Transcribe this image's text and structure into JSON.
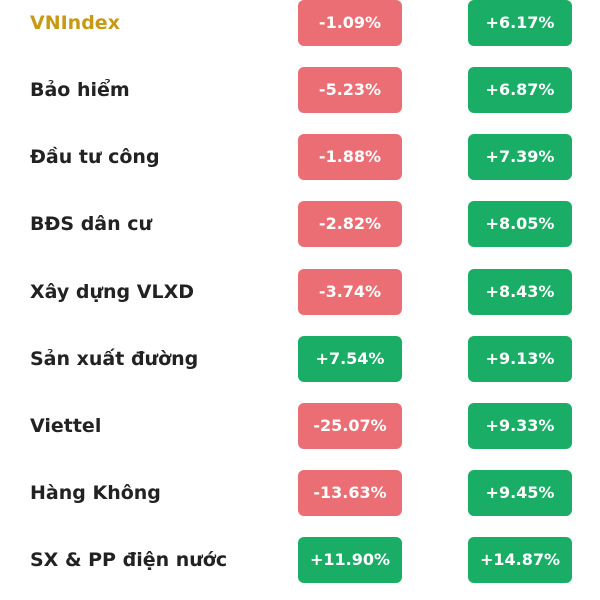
{
  "colors": {
    "positive": "#19ad66",
    "negative": "#ea6e74",
    "highlight_text": "#c79a16",
    "text": "#222222"
  },
  "rows": [
    {
      "name": "VNIndex",
      "highlight": true,
      "col1": "-1.09%",
      "col2": "+6.17%"
    },
    {
      "name": "Bảo hiểm",
      "col1": "-5.23%",
      "col2": "+6.87%"
    },
    {
      "name": "Đầu tư công",
      "col1": "-1.88%",
      "col2": "+7.39%"
    },
    {
      "name": "BĐS dân cư",
      "col1": "-2.82%",
      "col2": "+8.05%"
    },
    {
      "name": "Xây dựng VLXD",
      "col1": "-3.74%",
      "col2": "+8.43%"
    },
    {
      "name": "Sản xuất đường",
      "col1": "+7.54%",
      "col2": "+9.13%"
    },
    {
      "name": "Viettel",
      "col1": "-25.07%",
      "col2": "+9.33%"
    },
    {
      "name": "Hàng Không",
      "col1": "-13.63%",
      "col2": "+9.45%"
    },
    {
      "name": "SX & PP điện nước",
      "col1": "+11.90%",
      "col2": "+14.87%"
    }
  ]
}
